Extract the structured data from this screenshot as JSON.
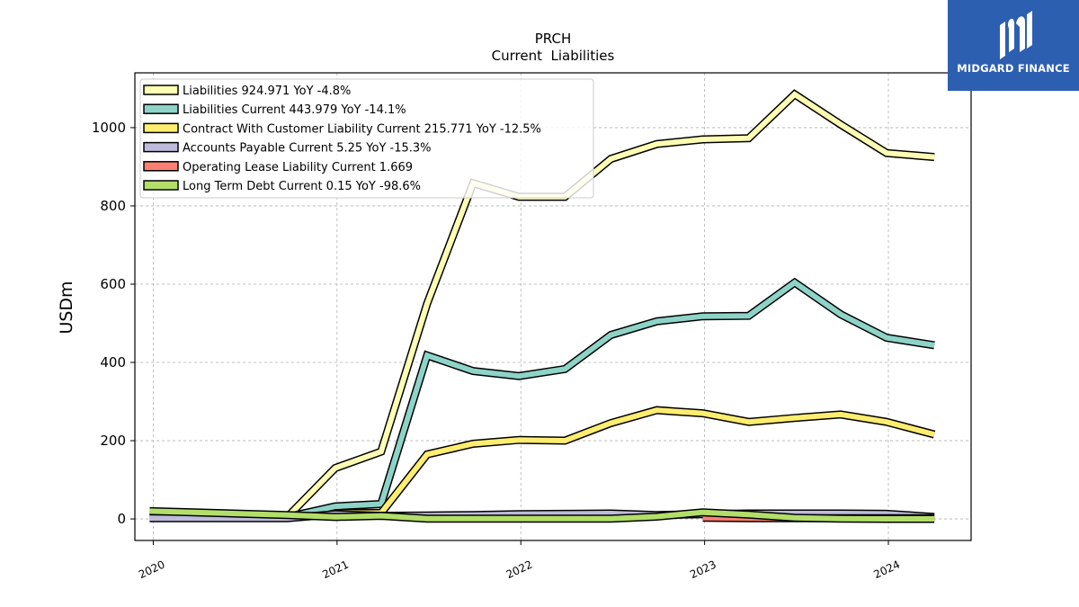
{
  "logo": {
    "text": "MIDGARD FINANCE"
  },
  "chart_data": {
    "type": "line",
    "title": "PRCH",
    "subtitle": "Current  Liabilities",
    "ylabel": "USDm",
    "xlabel": "",
    "xlim": [
      2019.9,
      2024.45
    ],
    "ylim": [
      -55,
      1140
    ],
    "xticks": [
      2020,
      2021,
      2022,
      2023,
      2024
    ],
    "xtick_labels": [
      "2020",
      "2021",
      "2022",
      "2023",
      "2024"
    ],
    "yticks": [
      0,
      200,
      400,
      600,
      800,
      1000
    ],
    "ytick_labels": [
      "0",
      "200",
      "400",
      "600",
      "800",
      "1000"
    ],
    "grid": true,
    "legend_position": "top-left",
    "x": [
      2019.98,
      2020.73,
      2020.99,
      2021.24,
      2021.49,
      2021.74,
      2021.99,
      2022.24,
      2022.49,
      2022.74,
      2022.99,
      2023.24,
      2023.49,
      2023.74,
      2023.99,
      2024.25
    ],
    "series": [
      {
        "name": "Liabilities  924.971 YoY -4.8%",
        "color": "#ffffb3",
        "values": [
          null,
          5,
          130,
          172,
          550,
          858,
          823,
          823,
          920,
          958,
          970,
          973,
          1085,
          1008,
          935,
          925
        ]
      },
      {
        "name": "Liabilities Current  443.979 YoY -14.1%",
        "color": "#8dd3c7",
        "values": [
          null,
          5,
          32,
          38,
          418,
          378,
          365,
          383,
          470,
          505,
          518,
          519,
          604,
          523,
          463,
          444
        ]
      },
      {
        "name": "Contract With Customer Liability Current  215.771 YoY -12.5%",
        "color": "#ffed6f",
        "values": [
          null,
          null,
          15,
          15,
          165,
          192,
          202,
          200,
          245,
          278,
          270,
          248,
          258,
          267,
          248,
          216
        ]
      },
      {
        "name": "Accounts Payable Current  5.25 YoY -15.3%",
        "color": "#bebada",
        "values": [
          2,
          2,
          12,
          8,
          9,
          10,
          12,
          13,
          14,
          10,
          12,
          14,
          14,
          14,
          13,
          5
        ]
      },
      {
        "name": "Operating Lease Liability Current  1.669",
        "color": "#fb8072",
        "values": [
          null,
          null,
          null,
          null,
          null,
          null,
          null,
          null,
          null,
          null,
          3,
          2,
          1.7,
          1.7,
          1.7,
          1.7
        ]
      },
      {
        "name": "Long Term Debt Current  0.15 YoY -98.6%",
        "color": "#b3de69",
        "values": [
          20,
          10,
          5,
          8,
          0.5,
          0.5,
          0.5,
          0.5,
          0.5,
          6,
          17,
          11,
          3,
          0.5,
          0.2,
          0.15
        ]
      }
    ]
  }
}
